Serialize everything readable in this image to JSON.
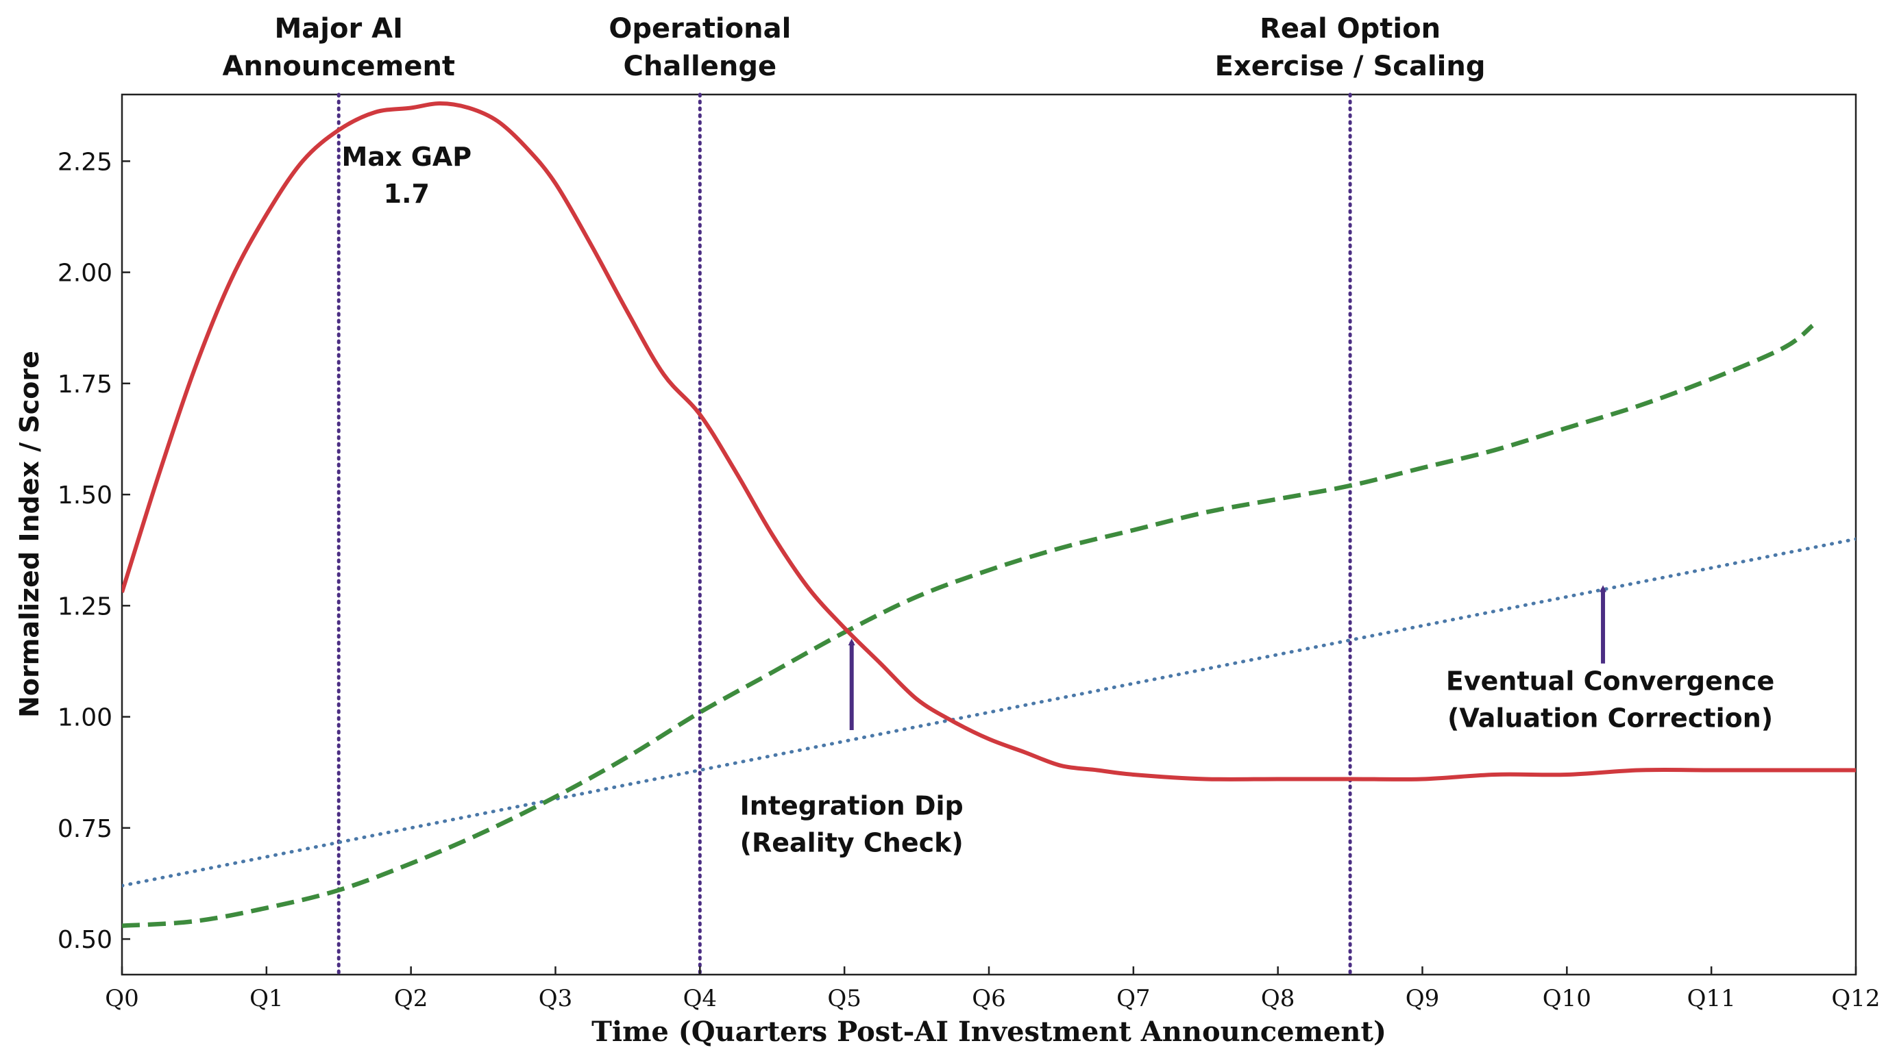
{
  "chart_data": {
    "type": "line",
    "xlabel": "Time (Quarters Post-AI Investment Announcement)",
    "ylabel": "Normalized Index / Score",
    "x_ticks": [
      "Q0",
      "Q1",
      "Q2",
      "Q3",
      "Q4",
      "Q5",
      "Q6",
      "Q7",
      "Q8",
      "Q9",
      "Q10",
      "Q11",
      "Q12"
    ],
    "y_ticks": [
      0.5,
      0.75,
      1.0,
      1.25,
      1.5,
      1.75,
      2.0,
      2.25
    ],
    "xlim": [
      0,
      12
    ],
    "ylim": [
      0.42,
      2.4
    ],
    "grid": false,
    "series": [
      {
        "key": "red",
        "color": "#d0393e",
        "style": "solid",
        "x": [
          0,
          0.25,
          0.5,
          0.75,
          1,
          1.25,
          1.5,
          1.75,
          2,
          2.2,
          2.4,
          2.6,
          2.8,
          3,
          3.25,
          3.5,
          3.75,
          4,
          4.25,
          4.5,
          4.75,
          5,
          5.25,
          5.5,
          5.75,
          6,
          6.25,
          6.5,
          6.75,
          7,
          7.5,
          8,
          8.5,
          9,
          9.5,
          10,
          10.5,
          11,
          11.5,
          12
        ],
        "y": [
          1.28,
          1.54,
          1.78,
          1.98,
          2.13,
          2.25,
          2.32,
          2.36,
          2.37,
          2.38,
          2.37,
          2.34,
          2.28,
          2.2,
          2.06,
          1.91,
          1.77,
          1.68,
          1.55,
          1.41,
          1.29,
          1.2,
          1.12,
          1.04,
          0.99,
          0.95,
          0.92,
          0.89,
          0.88,
          0.87,
          0.86,
          0.86,
          0.86,
          0.86,
          0.87,
          0.87,
          0.88,
          0.88,
          0.88,
          0.88
        ]
      },
      {
        "key": "green",
        "color": "#3d8b3d",
        "style": "dashed",
        "x": [
          0,
          0.5,
          1,
          1.5,
          2,
          2.5,
          3,
          3.5,
          4,
          4.5,
          5,
          5.5,
          6,
          6.5,
          7,
          7.5,
          8,
          8.5,
          9,
          9.5,
          10,
          10.5,
          11,
          11.5,
          11.7
        ],
        "y": [
          0.53,
          0.54,
          0.57,
          0.61,
          0.67,
          0.74,
          0.82,
          0.91,
          1.01,
          1.1,
          1.19,
          1.27,
          1.33,
          1.38,
          1.42,
          1.46,
          1.49,
          1.52,
          1.56,
          1.6,
          1.65,
          1.7,
          1.76,
          1.83,
          1.88
        ]
      },
      {
        "key": "blue",
        "color": "#4a78a8",
        "style": "dotted",
        "x": [
          0,
          12
        ],
        "y": [
          0.62,
          1.4
        ]
      }
    ],
    "vlines": [
      1.5,
      4.0,
      8.5
    ],
    "vline_color": "#4b2e83",
    "event_labels": [
      {
        "x": 1.5,
        "line1": "Major AI",
        "line2": "Announcement"
      },
      {
        "x": 4.0,
        "line1": "Operational",
        "line2": "Challenge"
      },
      {
        "x": 8.5,
        "line1": "Real Option",
        "line2": "Exercise / Scaling"
      }
    ],
    "annotations": [
      {
        "line1": "Max GAP",
        "line2": "1.7",
        "x": 1.97,
        "y": 2.24
      },
      {
        "line1": "Integration Dip",
        "line2": "(Reality Check)",
        "x": 5.05,
        "y": 0.78,
        "arrow_from": [
          5.05,
          0.97
        ],
        "arrow_to": [
          5.05,
          1.19
        ]
      },
      {
        "line1": "Eventual Convergence",
        "line2": "(Valuation Correction)",
        "x": 10.3,
        "y": 1.06,
        "arrow_from": [
          10.25,
          1.12
        ],
        "arrow_to": [
          10.25,
          1.31
        ]
      }
    ],
    "arrow_color": "#4b2e83"
  }
}
